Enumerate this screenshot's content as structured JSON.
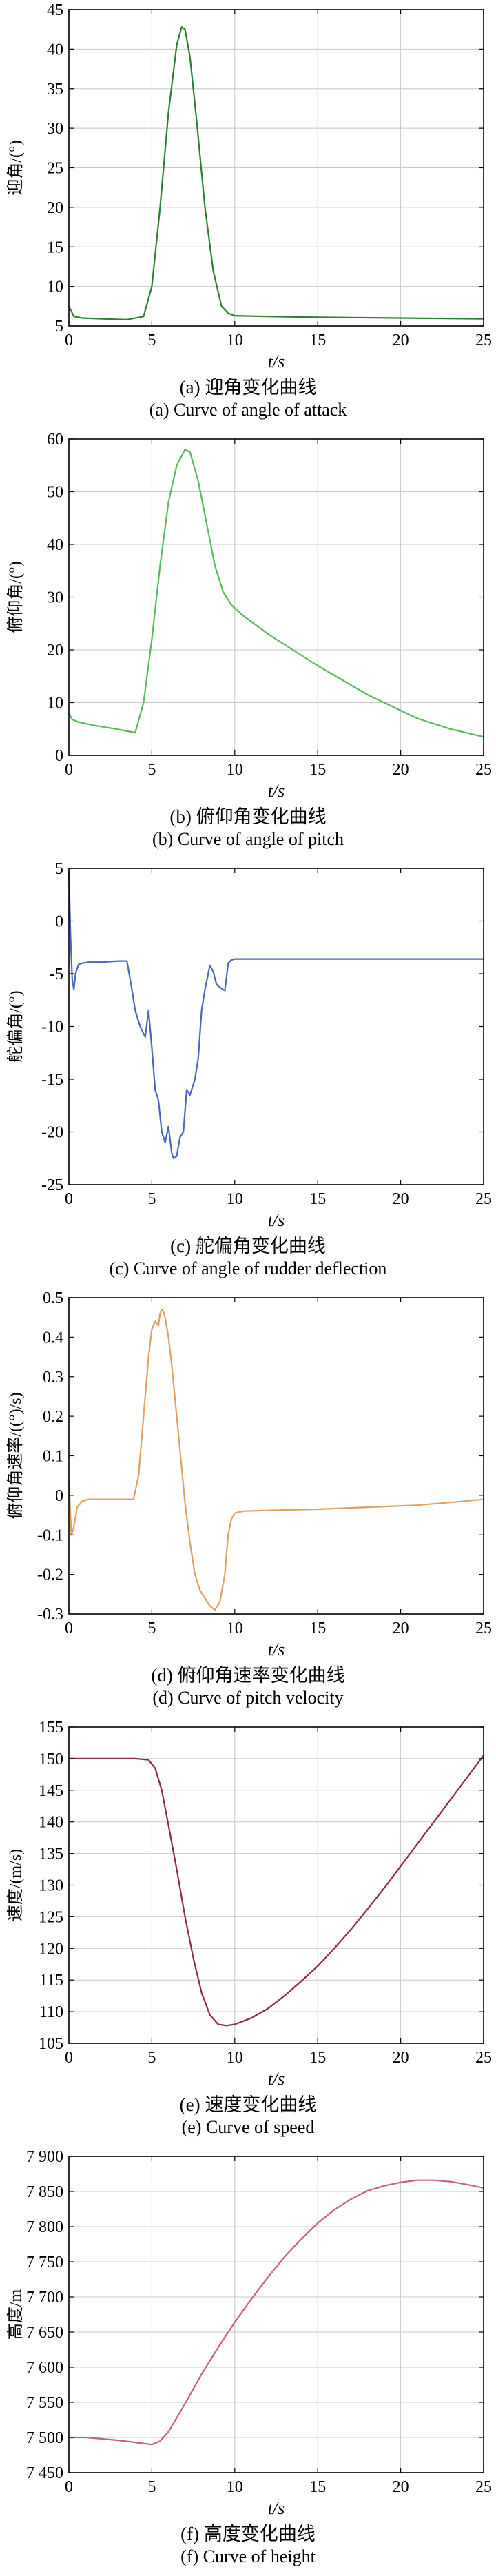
{
  "chart_data": [
    {
      "type": "line",
      "ylabel": "迎角/(°)",
      "xlabel": "t/s",
      "caption_cn": "(a) 迎角变化曲线",
      "caption_en": "(a) Curve of angle of attack",
      "xlim": [
        0,
        25
      ],
      "ylim": [
        5,
        45
      ],
      "xticks": [
        0,
        5,
        10,
        15,
        20,
        25
      ],
      "yticks": [
        5,
        10,
        15,
        20,
        25,
        30,
        35,
        40,
        45
      ],
      "grid": true,
      "color": "#2e7d32",
      "series": [
        {
          "x": [
            0,
            0.3,
            0.8,
            2,
            3.5,
            4.5,
            5.0,
            5.5,
            6.0,
            6.5,
            6.8,
            7.0,
            7.3,
            7.7,
            8.2,
            8.7,
            9.2,
            9.6,
            10.0,
            12,
            15,
            20,
            25
          ],
          "y": [
            7.5,
            6.2,
            6.0,
            5.9,
            5.8,
            6.2,
            10,
            20,
            32,
            40.5,
            42.8,
            42.5,
            39,
            31,
            20,
            12,
            7.5,
            6.6,
            6.3,
            6.2,
            6.1,
            6.0,
            5.9
          ]
        }
      ]
    },
    {
      "type": "line",
      "ylabel": "俯仰角/(°)",
      "xlabel": "t/s",
      "caption_cn": "(b) 俯仰角变化曲线",
      "caption_en": "(b) Curve of angle of pitch",
      "xlim": [
        0,
        25
      ],
      "ylim": [
        0,
        60
      ],
      "xticks": [
        0,
        5,
        10,
        15,
        20,
        25
      ],
      "yticks": [
        0,
        10,
        20,
        30,
        40,
        50,
        60
      ],
      "grid": true,
      "color": "#5cb85c",
      "series": [
        {
          "x": [
            0,
            0.2,
            0.6,
            1.5,
            3,
            4.0,
            4.5,
            5.0,
            5.5,
            6.0,
            6.5,
            7.0,
            7.3,
            7.8,
            8.3,
            8.8,
            9.3,
            9.8,
            10.5,
            12,
            15,
            18,
            21,
            23,
            25
          ],
          "y": [
            8,
            6.8,
            6.3,
            5.7,
            4.9,
            4.3,
            10,
            22,
            36,
            48,
            55,
            58,
            57.5,
            52,
            44,
            36,
            31,
            28.5,
            26.5,
            23,
            17,
            11.5,
            7,
            5,
            3.5
          ]
        }
      ]
    },
    {
      "type": "line",
      "ylabel": "舵偏角/(°)",
      "xlabel": "t/s",
      "caption_cn": "(c) 舵偏角变化曲线",
      "caption_en": "(c) Curve of angle of rudder deflection",
      "xlim": [
        0,
        25
      ],
      "ylim": [
        -25,
        5
      ],
      "xticks": [
        0,
        5,
        10,
        15,
        20,
        25
      ],
      "yticks": [
        -25,
        -20,
        -15,
        -10,
        -5,
        0,
        5
      ],
      "grid": false,
      "color": "#4a66c0",
      "series": [
        {
          "x": [
            0,
            0.1,
            0.2,
            0.3,
            0.4,
            0.5,
            0.6,
            0.8,
            1.2,
            2,
            3,
            3.5,
            3.8,
            4.0,
            4.3,
            4.6,
            4.8,
            5.0,
            5.2,
            5.4,
            5.6,
            5.8,
            6.0,
            6.2,
            6.3,
            6.5,
            6.7,
            6.9,
            7.1,
            7.3,
            7.6,
            7.8,
            8.0,
            8.2,
            8.5,
            8.7,
            8.9,
            9.1,
            9.4,
            9.6,
            9.8,
            10.0,
            11,
            15,
            20,
            25
          ],
          "y": [
            4.5,
            -1.5,
            -5.5,
            -6.5,
            -5,
            -4.5,
            -4.1,
            -4.0,
            -3.9,
            -3.9,
            -3.8,
            -3.8,
            -6.5,
            -8.5,
            -10,
            -11,
            -8.5,
            -12,
            -16,
            -17,
            -20,
            -21,
            -19.5,
            -22,
            -22.5,
            -22.3,
            -20.5,
            -20,
            -16,
            -16.5,
            -15,
            -13,
            -8.5,
            -6.5,
            -4.2,
            -4.8,
            -6,
            -6.3,
            -6.6,
            -4.0,
            -3.7,
            -3.6,
            -3.6,
            -3.6,
            -3.6,
            -3.6
          ]
        }
      ]
    },
    {
      "type": "line",
      "ylabel": "俯仰角速率/((°)/s)",
      "xlabel": "t/s",
      "caption_cn": "(d) 俯仰角速率变化曲线",
      "caption_en": "(d) Curve of pitch velocity",
      "xlim": [
        0,
        25
      ],
      "ylim": [
        -0.3,
        0.5
      ],
      "xticks": [
        0,
        5,
        10,
        15,
        20,
        25
      ],
      "yticks": [
        -0.3,
        -0.2,
        -0.1,
        0,
        0.1,
        0.2,
        0.3,
        0.4,
        0.5
      ],
      "grid": false,
      "color": "#e0a060",
      "series": [
        {
          "x": [
            0,
            0.15,
            0.3,
            0.5,
            0.8,
            1.2,
            2,
            3,
            3.9,
            4.2,
            4.5,
            4.8,
            5.0,
            5.2,
            5.4,
            5.5,
            5.6,
            5.7,
            5.8,
            6.0,
            6.2,
            6.5,
            6.8,
            7.0,
            7.3,
            7.6,
            7.9,
            8.2,
            8.5,
            8.8,
            9.1,
            9.4,
            9.6,
            9.8,
            10.0,
            10.5,
            12,
            15,
            18,
            21,
            23,
            25
          ],
          "y": [
            0.04,
            -0.1,
            -0.08,
            -0.03,
            -0.015,
            -0.01,
            -0.01,
            -0.01,
            -0.01,
            0.05,
            0.2,
            0.35,
            0.42,
            0.44,
            0.43,
            0.46,
            0.47,
            0.465,
            0.45,
            0.4,
            0.33,
            0.2,
            0.07,
            -0.02,
            -0.12,
            -0.2,
            -0.24,
            -0.26,
            -0.28,
            -0.29,
            -0.27,
            -0.2,
            -0.1,
            -0.06,
            -0.045,
            -0.04,
            -0.038,
            -0.035,
            -0.03,
            -0.025,
            -0.018,
            -0.01
          ]
        }
      ]
    },
    {
      "type": "line",
      "ylabel": "速度/(m/s)",
      "xlabel": "t/s",
      "caption_cn": "(e) 速度变化曲线",
      "caption_en": "(e) Curve of speed",
      "xlim": [
        0,
        25
      ],
      "ylim": [
        105,
        155
      ],
      "xticks": [
        0,
        5,
        10,
        15,
        20,
        25
      ],
      "yticks": [
        105,
        110,
        115,
        120,
        125,
        130,
        135,
        140,
        145,
        150,
        155
      ],
      "grid": true,
      "color": "#8b2a4a",
      "series": [
        {
          "x": [
            0,
            2,
            4,
            4.8,
            5.2,
            5.6,
            6.0,
            6.5,
            7.0,
            7.5,
            8.0,
            8.5,
            9.0,
            9.5,
            10,
            11,
            12,
            13,
            14,
            15,
            16,
            17,
            18,
            19,
            20,
            21,
            22,
            23,
            24,
            25
          ],
          "y": [
            150,
            150,
            150,
            149.8,
            148.5,
            145,
            139.5,
            132.5,
            125,
            118.5,
            113,
            109.5,
            108,
            107.8,
            108,
            109,
            110.5,
            112.5,
            114.8,
            117.2,
            120,
            123,
            126.2,
            129.5,
            133,
            136.5,
            140,
            143.5,
            147,
            150.5
          ]
        }
      ]
    },
    {
      "type": "line",
      "ylabel": "高度/m",
      "xlabel": "t/s",
      "caption_cn": "(f) 高度变化曲线",
      "caption_en": "(f) Curve of height",
      "xlim": [
        0,
        25
      ],
      "ylim": [
        7450,
        7900
      ],
      "xticks": [
        0,
        5,
        10,
        15,
        20,
        25
      ],
      "yticks": [
        7450,
        7500,
        7550,
        7600,
        7650,
        7700,
        7750,
        7800,
        7850,
        7900
      ],
      "yticklabels": [
        "7 450",
        "7 500",
        "7 550",
        "7 600",
        "7 650",
        "7 700",
        "7 750",
        "7 800",
        "7 850",
        "7 900"
      ],
      "grid": true,
      "color": "#c8607a",
      "series": [
        {
          "x": [
            0,
            1,
            2,
            3,
            4,
            5,
            5.5,
            6,
            7,
            8,
            9,
            10,
            11,
            12,
            13,
            14,
            15,
            16,
            17,
            18,
            19,
            20,
            21,
            22,
            23,
            24,
            25
          ],
          "y": [
            7500,
            7500,
            7498,
            7496,
            7493,
            7490,
            7495,
            7508,
            7548,
            7590,
            7628,
            7664,
            7697,
            7728,
            7757,
            7782,
            7805,
            7824,
            7839,
            7851,
            7858,
            7863,
            7866,
            7866,
            7864,
            7860,
            7855
          ]
        }
      ]
    }
  ]
}
